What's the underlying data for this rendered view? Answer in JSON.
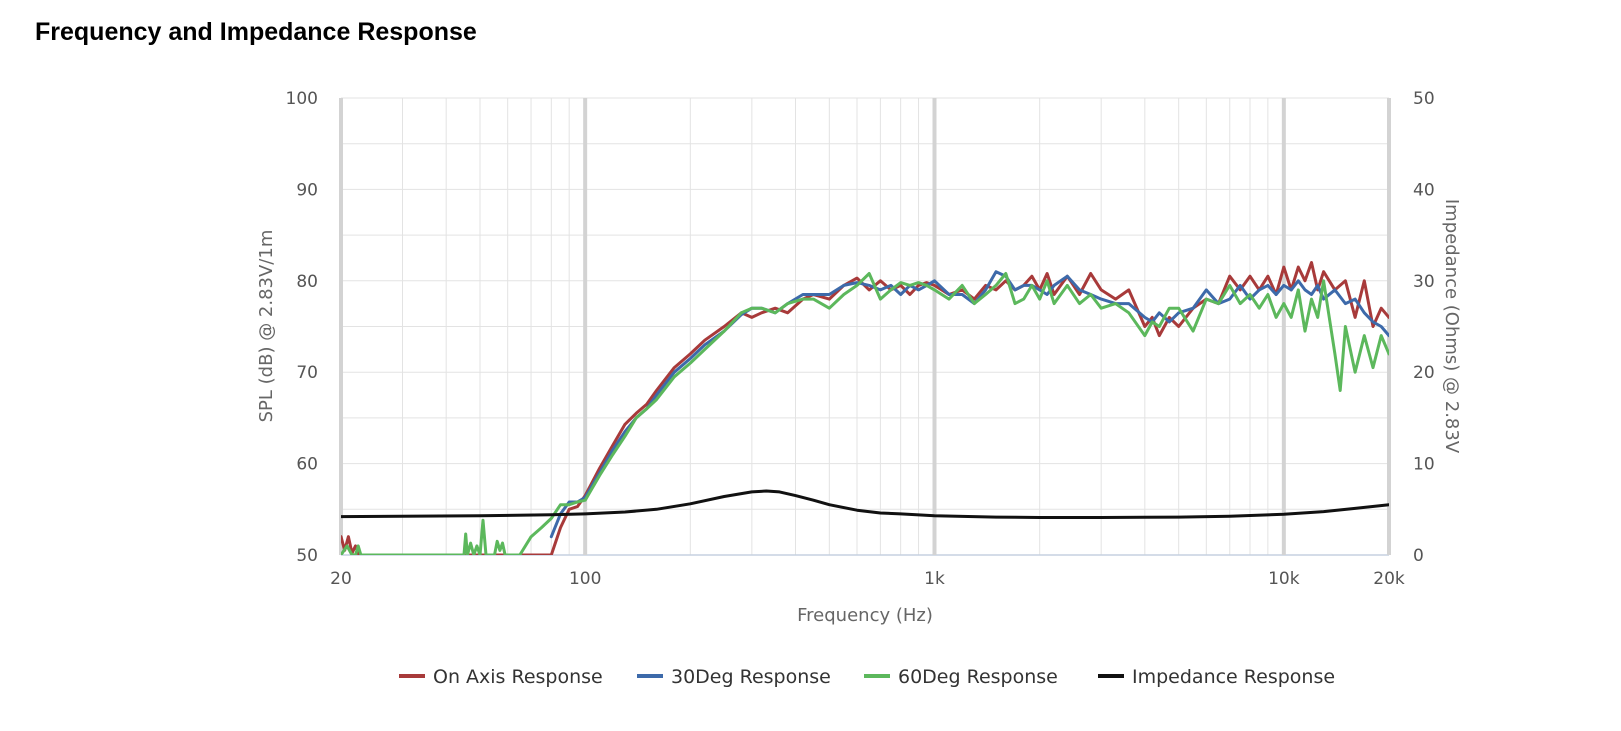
{
  "page": {
    "title": "Frequency and Impedance Response"
  },
  "chart_data": {
    "type": "line",
    "title": "Frequency and Impedance Response",
    "xlabel": "Frequency (Hz)",
    "ylabel": "SPL (dB) @ 2.83V/1m",
    "y2label": "Impedance (Ohms) @ 2.83V",
    "x_scale": "log",
    "xlim": [
      20,
      20000
    ],
    "ylim": [
      50,
      100
    ],
    "y2lim": [
      0,
      50
    ],
    "x_ticks": [
      {
        "value": 20,
        "label": "20"
      },
      {
        "value": 100,
        "label": "100"
      },
      {
        "value": 1000,
        "label": "1k"
      },
      {
        "value": 10000,
        "label": "10k"
      },
      {
        "value": 20000,
        "label": "20k"
      }
    ],
    "y_ticks": [
      50,
      60,
      70,
      80,
      90,
      100
    ],
    "y2_ticks": [
      0,
      10,
      20,
      30,
      40,
      50
    ],
    "grid": true,
    "legend_position": "bottom",
    "series": [
      {
        "name": "On Axis Response",
        "color": "#a83a3a",
        "axis": "left",
        "x": [
          20,
          20.5,
          21,
          21.5,
          22,
          22.5,
          80,
          85,
          90,
          95,
          100,
          110,
          120,
          130,
          140,
          150,
          160,
          180,
          200,
          220,
          250,
          280,
          300,
          320,
          350,
          380,
          420,
          450,
          500,
          550,
          600,
          650,
          700,
          750,
          800,
          850,
          900,
          950,
          1000,
          1100,
          1200,
          1300,
          1400,
          1500,
          1600,
          1700,
          1800,
          1900,
          2000,
          2100,
          2200,
          2400,
          2600,
          2800,
          3000,
          3300,
          3600,
          4000,
          4200,
          4400,
          4700,
          5000,
          5500,
          6000,
          6500,
          7000,
          7500,
          8000,
          8500,
          9000,
          9500,
          10000,
          10500,
          11000,
          11500,
          12000,
          12500,
          13000,
          14000,
          15000,
          16000,
          17000,
          18000,
          19000,
          20000
        ],
        "y": [
          52,
          50.5,
          52,
          50.2,
          51,
          50,
          50,
          53,
          55,
          55.3,
          56.5,
          59.5,
          62,
          64.3,
          65.5,
          66.5,
          68,
          70.5,
          72,
          73.5,
          75,
          76.5,
          76,
          76.5,
          77,
          76.5,
          78,
          78.5,
          78,
          79.5,
          80.3,
          79,
          80,
          79,
          79.5,
          78.5,
          79.5,
          79.8,
          79.5,
          78.5,
          79,
          78,
          79.5,
          79,
          80,
          79,
          79.5,
          80.5,
          79,
          80.8,
          78.5,
          80.5,
          78.5,
          80.8,
          79,
          78,
          79,
          75,
          76,
          74,
          76,
          75,
          77,
          78,
          77.5,
          80.5,
          79,
          80.5,
          79,
          80.5,
          78.5,
          81.5,
          79,
          81.5,
          80,
          82,
          79,
          81,
          79,
          80,
          76,
          80,
          75,
          77,
          76
        ]
      },
      {
        "name": "30Deg Response",
        "color": "#3d6aaa",
        "axis": "left",
        "x": [
          80,
          85,
          90,
          95,
          100,
          110,
          120,
          130,
          140,
          150,
          160,
          180,
          200,
          220,
          250,
          280,
          300,
          320,
          350,
          380,
          420,
          450,
          500,
          550,
          600,
          650,
          700,
          750,
          800,
          850,
          900,
          950,
          1000,
          1100,
          1200,
          1300,
          1400,
          1500,
          1600,
          1700,
          1800,
          1900,
          2000,
          2100,
          2200,
          2400,
          2600,
          2800,
          3000,
          3300,
          3600,
          4000,
          4200,
          4400,
          4700,
          5000,
          5500,
          6000,
          6500,
          7000,
          7500,
          8000,
          8500,
          9000,
          9500,
          10000,
          10500,
          11000,
          11500,
          12000,
          12500,
          13000,
          14000,
          15000,
          16000,
          17000,
          18000,
          19000,
          20000
        ],
        "y": [
          52,
          54.5,
          55.8,
          55.8,
          56.3,
          59,
          61.5,
          63.5,
          65,
          66,
          67.5,
          70,
          71.5,
          73,
          74.5,
          76.3,
          77,
          77,
          76.5,
          77.5,
          78.5,
          78.5,
          78.5,
          79.5,
          79.8,
          79.5,
          79,
          79.5,
          78.5,
          79.5,
          79,
          79.5,
          80,
          78.5,
          78.5,
          77.5,
          79,
          81,
          80.5,
          79,
          79.5,
          79.5,
          79,
          78.5,
          79.5,
          80.5,
          79,
          78.5,
          78,
          77.5,
          77.5,
          76,
          75.5,
          76.5,
          75.5,
          76.5,
          77,
          79,
          77.5,
          78,
          79.5,
          78,
          79,
          79.5,
          78.5,
          79.5,
          79,
          80,
          79,
          78.5,
          79.5,
          78,
          79,
          77.5,
          78,
          76.5,
          75.5,
          75,
          74
        ]
      },
      {
        "name": "60Deg Response",
        "color": "#5cb85c",
        "axis": "left",
        "x": [
          20,
          20.8,
          21.5,
          22,
          22.4,
          22.8,
          45,
          45.5,
          46,
          47,
          48,
          49,
          50,
          51,
          52,
          55,
          56,
          57,
          58,
          59,
          62,
          65,
          70,
          75,
          80,
          85,
          90,
          95,
          100,
          110,
          120,
          130,
          140,
          150,
          160,
          180,
          200,
          220,
          250,
          280,
          300,
          320,
          350,
          380,
          420,
          450,
          500,
          550,
          600,
          650,
          700,
          750,
          800,
          850,
          900,
          950,
          1000,
          1100,
          1200,
          1300,
          1400,
          1500,
          1600,
          1700,
          1800,
          1900,
          2000,
          2100,
          2200,
          2400,
          2600,
          2800,
          3000,
          3300,
          3600,
          4000,
          4200,
          4400,
          4700,
          5000,
          5500,
          6000,
          6500,
          7000,
          7500,
          8000,
          8500,
          9000,
          9500,
          10000,
          10500,
          11000,
          11500,
          12000,
          12500,
          13000,
          14000,
          14500,
          15000,
          16000,
          17000,
          18000,
          19000,
          20000
        ],
        "y": [
          50,
          51,
          50,
          50,
          51,
          50,
          50,
          52.3,
          50,
          51.3,
          50,
          51,
          50,
          53.8,
          50,
          50,
          51.5,
          50.5,
          51.3,
          50,
          50,
          50,
          52,
          53,
          54,
          55.5,
          55.5,
          55.8,
          56,
          58.7,
          61,
          63,
          65,
          66,
          67,
          69.5,
          71,
          72.5,
          74.5,
          76.5,
          77,
          77,
          76.5,
          77.5,
          78,
          78,
          77,
          78.5,
          79.5,
          80.8,
          78,
          79,
          79.8,
          79.5,
          79.8,
          79.5,
          79,
          78,
          79.5,
          77.5,
          78.5,
          79.5,
          80.8,
          77.5,
          78,
          79.5,
          78,
          80,
          77.5,
          79.5,
          77.5,
          78.5,
          77,
          77.5,
          76.5,
          74,
          75.5,
          75,
          77,
          77,
          74.5,
          78,
          77.5,
          79.5,
          77.5,
          78.5,
          77,
          78.5,
          76,
          77.5,
          76,
          79,
          74.5,
          78,
          76,
          80,
          72,
          68,
          75,
          70,
          74,
          70.5,
          74,
          72
        ]
      },
      {
        "name": "Impedance Response",
        "color": "#111111",
        "axis": "right",
        "x": [
          20,
          50,
          80,
          100,
          130,
          160,
          200,
          250,
          300,
          330,
          360,
          400,
          450,
          500,
          600,
          700,
          800,
          1000,
          1500,
          2000,
          3000,
          5000,
          7000,
          10000,
          13000,
          16000,
          20000
        ],
        "y": [
          4.2,
          4.3,
          4.4,
          4.5,
          4.7,
          5.0,
          5.6,
          6.4,
          6.9,
          7.0,
          6.9,
          6.5,
          6.0,
          5.5,
          4.9,
          4.6,
          4.5,
          4.3,
          4.15,
          4.1,
          4.1,
          4.15,
          4.25,
          4.45,
          4.75,
          5.1,
          5.5
        ]
      }
    ]
  }
}
